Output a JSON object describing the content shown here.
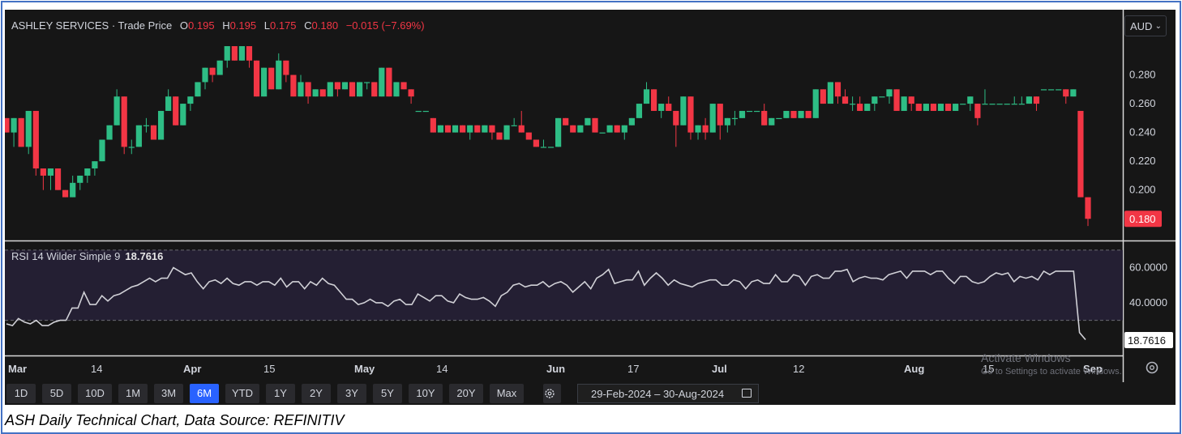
{
  "header": {
    "symbol": "ASHLEY SERVICES",
    "separator": "·",
    "price_type": "Trade Price",
    "o_label": "O",
    "o_value": "0.195",
    "h_label": "H",
    "h_value": "0.195",
    "l_label": "L",
    "l_value": "0.175",
    "c_label": "C",
    "c_value": "0.180",
    "change": "−0.015 (−7.69%)"
  },
  "currency": "AUD",
  "rsi": {
    "label": "RSI 14 Wilder Simple 9",
    "value": "18.7616"
  },
  "last_price_badge": "0.180",
  "rsi_badge": "18.7616",
  "colors": {
    "up": "#2ebd85",
    "down": "#f23645",
    "background": "#161616",
    "rsi_line": "#d0d0d6",
    "rsi_band": "#241f33"
  },
  "toolbar": {
    "ranges": [
      "1D",
      "5D",
      "10D",
      "1M",
      "3M",
      "6M",
      "YTD",
      "1Y",
      "2Y",
      "3Y",
      "5Y",
      "10Y",
      "20Y",
      "Max"
    ],
    "active": "6M",
    "settings_icon": "gear-icon",
    "date_from": "29-Feb-2024",
    "date_sep": "–",
    "date_to": "30-Aug-2024",
    "calendar_icon": "calendar-icon"
  },
  "bottom_settings_icon": "gear-icon",
  "watermark": {
    "line1": "Activate Windows",
    "line2": "Go to Settings to activate Windows."
  },
  "caption": "ASH Daily Technical Chart, Data Source: REFINITIV",
  "chart_data": [
    {
      "type": "candlestick",
      "title": "ASHLEY SERVICES · Trade Price",
      "ylim": [
        0.17,
        0.3
      ],
      "yticks": [
        "0.280",
        "0.260",
        "0.240",
        "0.220",
        "0.200",
        "0.180"
      ],
      "xticks": [
        "Mar",
        "14",
        "Apr",
        "15",
        "May",
        "14",
        "Jun",
        "17",
        "Jul",
        "12",
        "Aug",
        "15",
        "Sep"
      ],
      "grid": false,
      "ohlc": [
        [
          0.25,
          0.25,
          0.24,
          0.24
        ],
        [
          0.24,
          0.25,
          0.23,
          0.25
        ],
        [
          0.25,
          0.25,
          0.23,
          0.23
        ],
        [
          0.23,
          0.255,
          0.225,
          0.255
        ],
        [
          0.255,
          0.255,
          0.21,
          0.215
        ],
        [
          0.215,
          0.215,
          0.2,
          0.21
        ],
        [
          0.21,
          0.215,
          0.2,
          0.215
        ],
        [
          0.215,
          0.215,
          0.2,
          0.2
        ],
        [
          0.2,
          0.2,
          0.195,
          0.195
        ],
        [
          0.195,
          0.21,
          0.195,
          0.205
        ],
        [
          0.205,
          0.21,
          0.2,
          0.21
        ],
        [
          0.21,
          0.215,
          0.205,
          0.215
        ],
        [
          0.215,
          0.22,
          0.21,
          0.22
        ],
        [
          0.22,
          0.235,
          0.22,
          0.235
        ],
        [
          0.235,
          0.245,
          0.235,
          0.245
        ],
        [
          0.245,
          0.27,
          0.245,
          0.265
        ],
        [
          0.265,
          0.265,
          0.225,
          0.23
        ],
        [
          0.23,
          0.235,
          0.225,
          0.23
        ],
        [
          0.23,
          0.245,
          0.23,
          0.245
        ],
        [
          0.245,
          0.25,
          0.24,
          0.245
        ],
        [
          0.245,
          0.245,
          0.235,
          0.235
        ],
        [
          0.235,
          0.255,
          0.235,
          0.255
        ],
        [
          0.255,
          0.27,
          0.255,
          0.265
        ],
        [
          0.265,
          0.265,
          0.245,
          0.245
        ],
        [
          0.245,
          0.26,
          0.245,
          0.26
        ],
        [
          0.26,
          0.265,
          0.255,
          0.265
        ],
        [
          0.265,
          0.275,
          0.265,
          0.275
        ],
        [
          0.275,
          0.285,
          0.27,
          0.285
        ],
        [
          0.285,
          0.285,
          0.275,
          0.28
        ],
        [
          0.28,
          0.29,
          0.28,
          0.29
        ],
        [
          0.29,
          0.3,
          0.285,
          0.3
        ],
        [
          0.3,
          0.3,
          0.29,
          0.29
        ],
        [
          0.29,
          0.3,
          0.29,
          0.3
        ],
        [
          0.3,
          0.3,
          0.285,
          0.29
        ],
        [
          0.29,
          0.29,
          0.265,
          0.265
        ],
        [
          0.265,
          0.285,
          0.265,
          0.285
        ],
        [
          0.285,
          0.285,
          0.27,
          0.27
        ],
        [
          0.27,
          0.295,
          0.27,
          0.29
        ],
        [
          0.29,
          0.29,
          0.275,
          0.28
        ],
        [
          0.28,
          0.28,
          0.265,
          0.265
        ],
        [
          0.265,
          0.28,
          0.265,
          0.275
        ],
        [
          0.275,
          0.275,
          0.26,
          0.265
        ],
        [
          0.265,
          0.27,
          0.265,
          0.27
        ],
        [
          0.27,
          0.27,
          0.265,
          0.265
        ],
        [
          0.265,
          0.275,
          0.265,
          0.275
        ],
        [
          0.275,
          0.275,
          0.265,
          0.27
        ],
        [
          0.27,
          0.275,
          0.27,
          0.275
        ],
        [
          0.275,
          0.275,
          0.265,
          0.265
        ],
        [
          0.265,
          0.275,
          0.265,
          0.275
        ],
        [
          0.275,
          0.275,
          0.27,
          0.275
        ],
        [
          0.275,
          0.275,
          0.265,
          0.265
        ],
        [
          0.265,
          0.285,
          0.265,
          0.285
        ],
        [
          0.285,
          0.285,
          0.265,
          0.265
        ],
        [
          0.265,
          0.275,
          0.265,
          0.275
        ],
        [
          0.275,
          0.275,
          0.27,
          0.27
        ],
        [
          0.27,
          0.27,
          0.26,
          0.265
        ],
        [
          0.255,
          0.255,
          0.255,
          0.255
        ],
        [
          0.255,
          0.255,
          0.255,
          0.255
        ],
        [
          0.25,
          0.25,
          0.24,
          0.24
        ],
        [
          0.24,
          0.245,
          0.24,
          0.245
        ],
        [
          0.245,
          0.245,
          0.24,
          0.24
        ],
        [
          0.24,
          0.245,
          0.24,
          0.245
        ],
        [
          0.245,
          0.245,
          0.24,
          0.24
        ],
        [
          0.24,
          0.245,
          0.235,
          0.245
        ],
        [
          0.245,
          0.245,
          0.24,
          0.24
        ],
        [
          0.24,
          0.245,
          0.24,
          0.245
        ],
        [
          0.245,
          0.245,
          0.235,
          0.24
        ],
        [
          0.24,
          0.24,
          0.235,
          0.235
        ],
        [
          0.235,
          0.245,
          0.235,
          0.245
        ],
        [
          0.245,
          0.25,
          0.245,
          0.245
        ],
        [
          0.245,
          0.255,
          0.24,
          0.24
        ],
        [
          0.24,
          0.24,
          0.235,
          0.235
        ],
        [
          0.235,
          0.235,
          0.23,
          0.23
        ],
        [
          0.23,
          0.235,
          0.23,
          0.23
        ],
        [
          0.23,
          0.23,
          0.23,
          0.23
        ],
        [
          0.23,
          0.25,
          0.23,
          0.25
        ],
        [
          0.25,
          0.25,
          0.245,
          0.245
        ],
        [
          0.245,
          0.245,
          0.24,
          0.24
        ],
        [
          0.24,
          0.245,
          0.24,
          0.245
        ],
        [
          0.245,
          0.25,
          0.245,
          0.25
        ],
        [
          0.25,
          0.25,
          0.24,
          0.24
        ],
        [
          0.24,
          0.24,
          0.24,
          0.24
        ],
        [
          0.24,
          0.245,
          0.24,
          0.245
        ],
        [
          0.245,
          0.245,
          0.24,
          0.24
        ],
        [
          0.24,
          0.245,
          0.235,
          0.245
        ],
        [
          0.245,
          0.25,
          0.245,
          0.25
        ],
        [
          0.25,
          0.26,
          0.25,
          0.26
        ],
        [
          0.26,
          0.275,
          0.26,
          0.27
        ],
        [
          0.27,
          0.27,
          0.255,
          0.255
        ],
        [
          0.255,
          0.26,
          0.25,
          0.26
        ],
        [
          0.26,
          0.265,
          0.255,
          0.255
        ],
        [
          0.255,
          0.255,
          0.23,
          0.245
        ],
        [
          0.245,
          0.265,
          0.245,
          0.265
        ],
        [
          0.265,
          0.265,
          0.235,
          0.24
        ],
        [
          0.24,
          0.245,
          0.235,
          0.245
        ],
        [
          0.245,
          0.25,
          0.235,
          0.24
        ],
        [
          0.24,
          0.26,
          0.24,
          0.26
        ],
        [
          0.26,
          0.26,
          0.235,
          0.245
        ],
        [
          0.245,
          0.25,
          0.24,
          0.25
        ],
        [
          0.25,
          0.255,
          0.245,
          0.25
        ],
        [
          0.25,
          0.255,
          0.25,
          0.255
        ],
        [
          0.255,
          0.255,
          0.255,
          0.255
        ],
        [
          0.255,
          0.255,
          0.255,
          0.255
        ],
        [
          0.255,
          0.26,
          0.245,
          0.245
        ],
        [
          0.245,
          0.25,
          0.245,
          0.25
        ],
        [
          0.25,
          0.25,
          0.25,
          0.25
        ],
        [
          0.25,
          0.255,
          0.25,
          0.255
        ],
        [
          0.255,
          0.255,
          0.25,
          0.25
        ],
        [
          0.25,
          0.255,
          0.25,
          0.255
        ],
        [
          0.255,
          0.255,
          0.25,
          0.25
        ],
        [
          0.25,
          0.27,
          0.25,
          0.27
        ],
        [
          0.27,
          0.27,
          0.26,
          0.26
        ],
        [
          0.26,
          0.275,
          0.26,
          0.275
        ],
        [
          0.275,
          0.275,
          0.26,
          0.265
        ],
        [
          0.265,
          0.27,
          0.26,
          0.26
        ],
        [
          0.26,
          0.265,
          0.255,
          0.26
        ],
        [
          0.26,
          0.265,
          0.255,
          0.255
        ],
        [
          0.255,
          0.26,
          0.255,
          0.26
        ],
        [
          0.26,
          0.265,
          0.255,
          0.265
        ],
        [
          0.265,
          0.265,
          0.265,
          0.265
        ],
        [
          0.265,
          0.27,
          0.26,
          0.27
        ],
        [
          0.27,
          0.27,
          0.255,
          0.255
        ],
        [
          0.255,
          0.265,
          0.255,
          0.265
        ],
        [
          0.265,
          0.265,
          0.255,
          0.26
        ],
        [
          0.26,
          0.26,
          0.255,
          0.255
        ],
        [
          0.255,
          0.26,
          0.255,
          0.26
        ],
        [
          0.26,
          0.26,
          0.255,
          0.255
        ],
        [
          0.255,
          0.26,
          0.255,
          0.26
        ],
        [
          0.26,
          0.26,
          0.255,
          0.255
        ],
        [
          0.255,
          0.26,
          0.255,
          0.26
        ],
        [
          0.26,
          0.26,
          0.26,
          0.26
        ],
        [
          0.26,
          0.265,
          0.255,
          0.265
        ],
        [
          0.26,
          0.26,
          0.245,
          0.25
        ],
        [
          0.26,
          0.27,
          0.26,
          0.26
        ],
        [
          0.26,
          0.26,
          0.26,
          0.26
        ],
        [
          0.26,
          0.26,
          0.26,
          0.26
        ],
        [
          0.26,
          0.26,
          0.26,
          0.26
        ],
        [
          0.26,
          0.265,
          0.26,
          0.26
        ],
        [
          0.26,
          0.265,
          0.26,
          0.26
        ],
        [
          0.26,
          0.265,
          0.26,
          0.265
        ],
        [
          0.265,
          0.265,
          0.255,
          0.26
        ],
        [
          0.27,
          0.27,
          0.27,
          0.27
        ],
        [
          0.27,
          0.27,
          0.27,
          0.27
        ],
        [
          0.27,
          0.27,
          0.27,
          0.27
        ],
        [
          0.27,
          0.27,
          0.26,
          0.265
        ],
        [
          0.265,
          0.27,
          0.265,
          0.27
        ],
        [
          0.255,
          0.255,
          0.195,
          0.195
        ],
        [
          0.195,
          0.195,
          0.175,
          0.18
        ]
      ]
    },
    {
      "type": "line",
      "title": "RSI 14 Wilder Simple 9",
      "ylim": [
        10,
        75
      ],
      "yticks": [
        "60.0000",
        "40.0000",
        "18.7616"
      ],
      "reference_levels": [
        70,
        30
      ],
      "series": [
        {
          "name": "RSI 14 Wilder Simple 9",
          "values": [
            28,
            27,
            31,
            29,
            28,
            30,
            27,
            27,
            29,
            30,
            30,
            37,
            37,
            46,
            39,
            39,
            44,
            41,
            44,
            45,
            47,
            49,
            50,
            52,
            54,
            52,
            54,
            54,
            60,
            58,
            56,
            57,
            52,
            48,
            52,
            53,
            51,
            54,
            51,
            50,
            52,
            52,
            50,
            52,
            52,
            50,
            54,
            49,
            52,
            52,
            48,
            52,
            50,
            54,
            51,
            50,
            46,
            42,
            42,
            39,
            40,
            42,
            40,
            40,
            38,
            41,
            42,
            39,
            39,
            45,
            43,
            41,
            44,
            44,
            41,
            40,
            45,
            43,
            42,
            42,
            43,
            41,
            38,
            44,
            46,
            50,
            51,
            49,
            50,
            50,
            52,
            49,
            51,
            52,
            50,
            46,
            49,
            52,
            48,
            54,
            56,
            59,
            51,
            52,
            53,
            53,
            58,
            50,
            54,
            57,
            54,
            50,
            53,
            51,
            50,
            49,
            51,
            52,
            53,
            53,
            50,
            50,
            53,
            52,
            48,
            52,
            53,
            51,
            51,
            56,
            52,
            52,
            56,
            55,
            50,
            55,
            56,
            54,
            54,
            58,
            58,
            59,
            52,
            54,
            55,
            54,
            54,
            53,
            56,
            57,
            58,
            54,
            58,
            58,
            58,
            56,
            58,
            58,
            54,
            51,
            55,
            55,
            52,
            51,
            52,
            55,
            57,
            56,
            57,
            52,
            55,
            54,
            55,
            53,
            58,
            56,
            58,
            58,
            58,
            58,
            23,
            19
          ]
        }
      ]
    }
  ]
}
